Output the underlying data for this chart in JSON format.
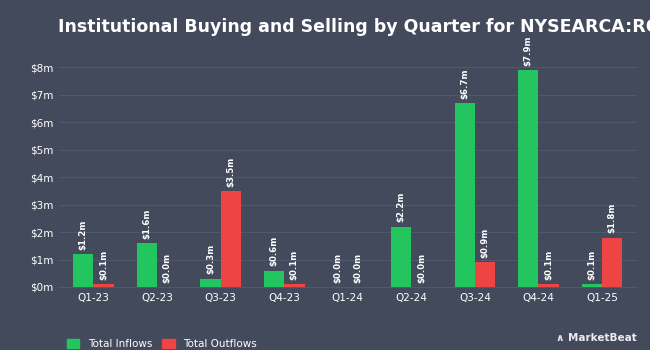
{
  "title": "Institutional Buying and Selling by Quarter for NYSEARCA:ROAM",
  "quarters": [
    "Q1-23",
    "Q2-23",
    "Q3-23",
    "Q4-23",
    "Q1-24",
    "Q2-24",
    "Q3-24",
    "Q4-24",
    "Q1-25"
  ],
  "inflows": [
    1.2,
    1.6,
    0.3,
    0.6,
    0.0,
    2.2,
    6.7,
    7.9,
    0.1
  ],
  "outflows": [
    0.1,
    0.0,
    3.5,
    0.1,
    0.0,
    0.0,
    0.9,
    0.1,
    1.8
  ],
  "inflow_labels": [
    "$1.2m",
    "$1.6m",
    "$0.3m",
    "$0.6m",
    "$0.0m",
    "$2.2m",
    "$6.7m",
    "$7.9m",
    "$0.1m"
  ],
  "outflow_labels": [
    "$0.1m",
    "$0.0m",
    "$3.5m",
    "$0.1m",
    "$0.0m",
    "$0.0m",
    "$0.9m",
    "$0.1m",
    "$1.8m"
  ],
  "inflow_color": "#22c55e",
  "outflow_color": "#ef4444",
  "bg_color": "#434a5c",
  "text_color": "#ffffff",
  "grid_color": "#515970",
  "bar_width": 0.32,
  "ylim": [
    0,
    8.8
  ],
  "yticks": [
    0,
    1,
    2,
    3,
    4,
    5,
    6,
    7,
    8
  ],
  "ytick_labels": [
    "$0m",
    "$1m",
    "$2m",
    "$3m",
    "$4m",
    "$5m",
    "$6m",
    "$7m",
    "$8m"
  ],
  "legend_inflow": "Total Inflows",
  "legend_outflow": "Total Outflows",
  "title_fontsize": 12.5,
  "label_fontsize": 6.2,
  "tick_fontsize": 7.5,
  "legend_fontsize": 7.5
}
